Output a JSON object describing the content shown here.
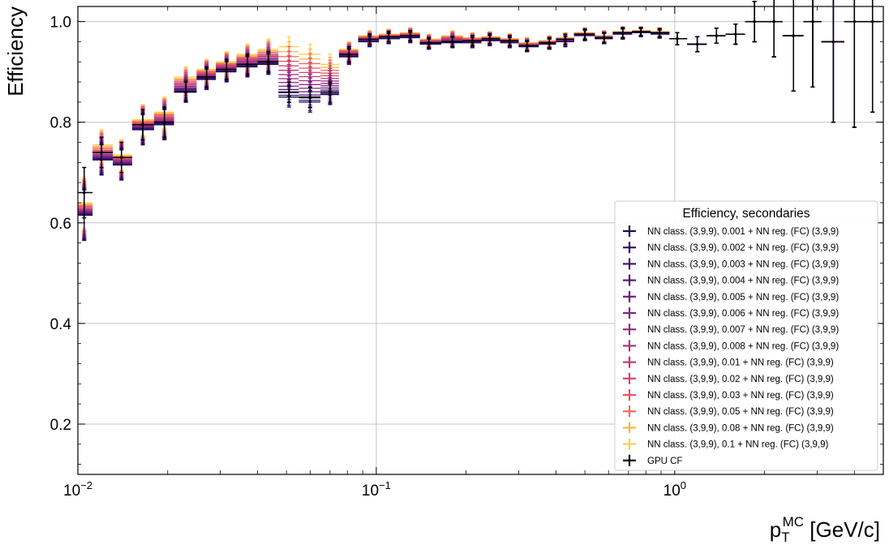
{
  "chart_data": {
    "type": "scatter",
    "title": "",
    "xlabel": "p_T^MC [GeV/c]",
    "xlabel_base": "p",
    "xlabel_sub": "T",
    "xlabel_sup": "MC",
    "xlabel_unit": " [GeV/c]",
    "ylabel": "Efficiency",
    "xscale": "log",
    "xlim": [
      0.01,
      5.0
    ],
    "ylim": [
      0.1,
      1.03
    ],
    "grid": true,
    "x_ticks": [
      {
        "value": 0.01,
        "base": "10",
        "exp": "−2"
      },
      {
        "value": 0.1,
        "base": "10",
        "exp": "−1"
      },
      {
        "value": 1,
        "base": "10",
        "exp": "0"
      }
    ],
    "y_ticks": [
      {
        "value": 0.2,
        "label": "0.2"
      },
      {
        "value": 0.4,
        "label": "0.4"
      },
      {
        "value": 0.6,
        "label": "0.6"
      },
      {
        "value": 0.8,
        "label": "0.8"
      },
      {
        "value": 1.0,
        "label": "1.0"
      }
    ],
    "legend": {
      "title": "Efficiency, secondaries",
      "placement": "lower-right"
    },
    "series": [
      {
        "name": "NN class. (3,9,9), 0.001 + NN reg. (FC) (3,9,9)",
        "color": "#1a0c5a"
      },
      {
        "name": "NN class. (3,9,9), 0.002 + NN reg. (FC) (3,9,9)",
        "color": "#2f0e70"
      },
      {
        "name": "NN class. (3,9,9), 0.003 + NN reg. (FC) (3,9,9)",
        "color": "#431177"
      },
      {
        "name": "NN class. (3,9,9), 0.004 + NN reg. (FC) (3,9,9)",
        "color": "#57167d"
      },
      {
        "name": "NN class. (3,9,9), 0.005 + NN reg. (FC) (3,9,9)",
        "color": "#6b1d81"
      },
      {
        "name": "NN class. (3,9,9), 0.006 + NN reg. (FC) (3,9,9)",
        "color": "#802582"
      },
      {
        "name": "NN class. (3,9,9), 0.007 + NN reg. (FC) (3,9,9)",
        "color": "#952c80"
      },
      {
        "name": "NN class. (3,9,9), 0.008 + NN reg. (FC) (3,9,9)",
        "color": "#ab337c"
      },
      {
        "name": "NN class. (3,9,9), 0.01 + NN reg. (FC) (3,9,9)",
        "color": "#c03a76"
      },
      {
        "name": "NN class. (3,9,9), 0.02 + NN reg. (FC) (3,9,9)",
        "color": "#d6456c"
      },
      {
        "name": "NN class. (3,9,9), 0.03 + NN reg. (FC) (3,9,9)",
        "color": "#e85362"
      },
      {
        "name": "NN class. (3,9,9), 0.05 + NN reg. (FC) (3,9,9)",
        "color": "#f4685c"
      },
      {
        "name": "NN class. (3,9,9), 0.08 + NN reg. (FC) (3,9,9)",
        "color": "#f9b640"
      },
      {
        "name": "NN class. (3,9,9), 0.1 + NN reg. (FC) (3,9,9)",
        "color": "#fcd047"
      },
      {
        "name": "GPU CF",
        "color": "#000000"
      }
    ],
    "bins": [
      {
        "x": 0.0105,
        "xlo": 0.01,
        "xhi": 0.0112,
        "ref": 0.66,
        "low": 0.615,
        "high": 0.64,
        "err": 0.05
      },
      {
        "x": 0.012,
        "xlo": 0.0112,
        "xhi": 0.0131,
        "ref": 0.74,
        "low": 0.725,
        "high": 0.755,
        "err": 0.03
      },
      {
        "x": 0.014,
        "xlo": 0.0131,
        "xhi": 0.0152,
        "ref": 0.73,
        "low": 0.715,
        "high": 0.735,
        "err": 0.03
      },
      {
        "x": 0.0165,
        "xlo": 0.0152,
        "xhi": 0.018,
        "ref": 0.795,
        "low": 0.785,
        "high": 0.805,
        "err": 0.03
      },
      {
        "x": 0.0195,
        "xlo": 0.018,
        "xhi": 0.021,
        "ref": 0.8,
        "low": 0.795,
        "high": 0.82,
        "err": 0.03
      },
      {
        "x": 0.023,
        "xlo": 0.021,
        "xhi": 0.025,
        "ref": 0.86,
        "low": 0.86,
        "high": 0.89,
        "err": 0.02
      },
      {
        "x": 0.027,
        "xlo": 0.025,
        "xhi": 0.029,
        "ref": 0.89,
        "low": 0.885,
        "high": 0.905,
        "err": 0.02
      },
      {
        "x": 0.0315,
        "xlo": 0.029,
        "xhi": 0.034,
        "ref": 0.905,
        "low": 0.9,
        "high": 0.92,
        "err": 0.02
      },
      {
        "x": 0.037,
        "xlo": 0.034,
        "xhi": 0.04,
        "ref": 0.915,
        "low": 0.91,
        "high": 0.935,
        "err": 0.02
      },
      {
        "x": 0.0435,
        "xlo": 0.04,
        "xhi": 0.047,
        "ref": 0.92,
        "low": 0.915,
        "high": 0.945,
        "err": 0.02
      },
      {
        "x": 0.051,
        "xlo": 0.047,
        "xhi": 0.055,
        "ref": 0.86,
        "low": 0.85,
        "high": 0.95,
        "err": 0.02
      },
      {
        "x": 0.06,
        "xlo": 0.055,
        "xhi": 0.065,
        "ref": 0.85,
        "low": 0.84,
        "high": 0.935,
        "err": 0.02
      },
      {
        "x": 0.07,
        "xlo": 0.065,
        "xhi": 0.075,
        "ref": 0.86,
        "low": 0.855,
        "high": 0.915,
        "err": 0.02
      },
      {
        "x": 0.081,
        "xlo": 0.075,
        "xhi": 0.087,
        "ref": 0.935,
        "low": 0.93,
        "high": 0.945,
        "err": 0.015
      },
      {
        "x": 0.095,
        "xlo": 0.087,
        "xhi": 0.102,
        "ref": 0.965,
        "low": 0.96,
        "high": 0.972,
        "err": 0.01
      },
      {
        "x": 0.11,
        "xlo": 0.102,
        "xhi": 0.12,
        "ref": 0.97,
        "low": 0.966,
        "high": 0.975,
        "err": 0.01
      },
      {
        "x": 0.13,
        "xlo": 0.12,
        "xhi": 0.14,
        "ref": 0.972,
        "low": 0.968,
        "high": 0.978,
        "err": 0.01
      },
      {
        "x": 0.15,
        "xlo": 0.14,
        "xhi": 0.165,
        "ref": 0.958,
        "low": 0.955,
        "high": 0.965,
        "err": 0.01
      },
      {
        "x": 0.18,
        "xlo": 0.165,
        "xhi": 0.195,
        "ref": 0.96,
        "low": 0.958,
        "high": 0.972,
        "err": 0.01
      },
      {
        "x": 0.21,
        "xlo": 0.195,
        "xhi": 0.225,
        "ref": 0.962,
        "low": 0.958,
        "high": 0.968,
        "err": 0.01
      },
      {
        "x": 0.24,
        "xlo": 0.225,
        "xhi": 0.26,
        "ref": 0.966,
        "low": 0.962,
        "high": 0.97,
        "err": 0.01
      },
      {
        "x": 0.28,
        "xlo": 0.26,
        "xhi": 0.3,
        "ref": 0.962,
        "low": 0.958,
        "high": 0.966,
        "err": 0.01
      },
      {
        "x": 0.32,
        "xlo": 0.3,
        "xhi": 0.35,
        "ref": 0.952,
        "low": 0.95,
        "high": 0.958,
        "err": 0.01
      },
      {
        "x": 0.38,
        "xlo": 0.35,
        "xhi": 0.4,
        "ref": 0.958,
        "low": 0.955,
        "high": 0.962,
        "err": 0.01
      },
      {
        "x": 0.43,
        "xlo": 0.4,
        "xhi": 0.46,
        "ref": 0.965,
        "low": 0.96,
        "high": 0.968,
        "err": 0.01
      },
      {
        "x": 0.5,
        "xlo": 0.46,
        "xhi": 0.54,
        "ref": 0.975,
        "low": 0.972,
        "high": 0.978,
        "err": 0.01
      },
      {
        "x": 0.58,
        "xlo": 0.54,
        "xhi": 0.62,
        "ref": 0.968,
        "low": 0.966,
        "high": 0.972,
        "err": 0.01
      },
      {
        "x": 0.67,
        "xlo": 0.62,
        "xhi": 0.72,
        "ref": 0.978,
        "low": 0.975,
        "high": 0.98,
        "err": 0.01
      },
      {
        "x": 0.77,
        "xlo": 0.72,
        "xhi": 0.83,
        "ref": 0.98,
        "low": 0.978,
        "high": 0.982,
        "err": 0.008
      },
      {
        "x": 0.89,
        "xlo": 0.83,
        "xhi": 0.96,
        "ref": 0.978,
        "low": 0.975,
        "high": 0.98,
        "err": 0.008
      },
      {
        "x": 1.02,
        "xlo": 0.96,
        "xhi": 1.1,
        "ref": 0.966,
        "low": 0.966,
        "high": 0.966,
        "err": 0.012
      },
      {
        "x": 1.19,
        "xlo": 1.1,
        "xhi": 1.28,
        "ref": 0.955,
        "low": 0.955,
        "high": 0.955,
        "err": 0.015
      },
      {
        "x": 1.38,
        "xlo": 1.28,
        "xhi": 1.48,
        "ref": 0.972,
        "low": 0.972,
        "high": 0.972,
        "err": 0.015
      },
      {
        "x": 1.6,
        "xlo": 1.48,
        "xhi": 1.72,
        "ref": 0.975,
        "low": 0.975,
        "high": 0.975,
        "err": 0.02
      },
      {
        "x": 1.85,
        "xlo": 1.72,
        "xhi": 2.0,
        "ref": 1.0,
        "low": 1.0,
        "high": 1.0,
        "err": 0.04
      },
      {
        "x": 2.15,
        "xlo": 2.0,
        "xhi": 2.3,
        "ref": 1.0,
        "low": 1.0,
        "high": 1.0,
        "err": 0.07
      },
      {
        "x": 2.5,
        "xlo": 2.3,
        "xhi": 2.7,
        "ref": 0.972,
        "low": 0.972,
        "high": 0.972,
        "err": 0.11
      },
      {
        "x": 2.9,
        "xlo": 2.7,
        "xhi": 3.1,
        "ref": 1.0,
        "low": 1.0,
        "high": 1.0,
        "err": 0.13
      },
      {
        "x": 3.4,
        "xlo": 3.1,
        "xhi": 3.7,
        "ref": 0.96,
        "low": 0.96,
        "high": 0.96,
        "err": 0.16
      },
      {
        "x": 4.0,
        "xlo": 3.7,
        "xhi": 4.3,
        "ref": 1.0,
        "low": 1.0,
        "high": 1.0,
        "err": 0.21
      },
      {
        "x": 4.6,
        "xlo": 4.3,
        "xhi": 4.9,
        "ref": 1.0,
        "low": 1.0,
        "high": 1.0,
        "err": 0.18
      }
    ]
  }
}
